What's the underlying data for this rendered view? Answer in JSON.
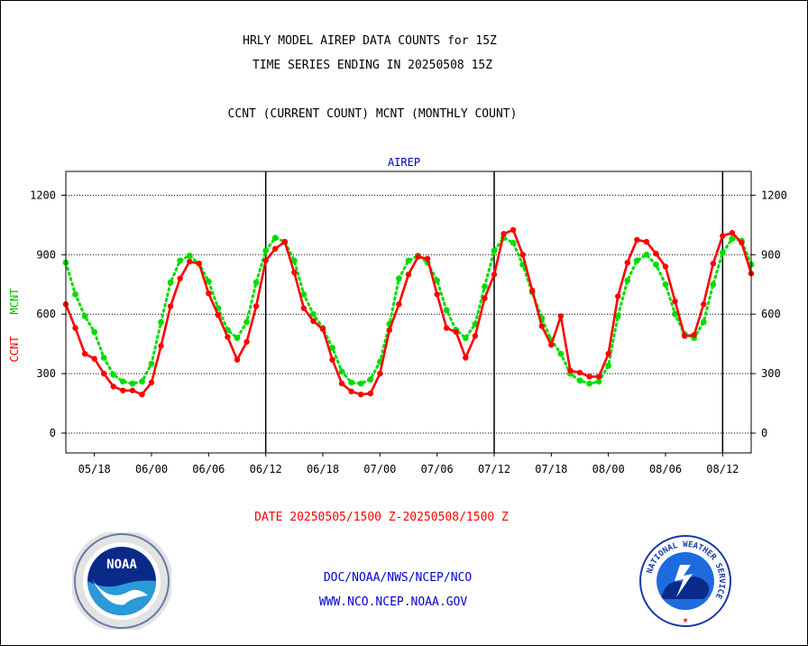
{
  "header": {
    "title_line1": "HRLY MODEL AIREP DATA COUNTS for 15Z",
    "title_line2": "TIME SERIES ENDING IN 20250508 15Z",
    "title_line3": "CCNT (CURRENT COUNT) MCNT (MONTHLY COUNT)"
  },
  "footer": {
    "date_range": "DATE 20250505/1500 Z-20250508/1500 Z",
    "org_line": "DOC/NOAA/NWS/NCEP/NCO",
    "url_line": "WWW.NCO.NCEP.NOAA.GOV"
  },
  "logos": {
    "noaa_text": "NOAA",
    "nws_text": "NATIONAL WEATHER SERVICE"
  },
  "colors": {
    "ccnt": "#ff0000",
    "mcnt": "#00dd00",
    "subtitle": "#0000cc",
    "grid": "#000000"
  },
  "chart_data": {
    "type": "line",
    "subtitle": "AIREP",
    "ylabel_ccnt": "CCNT",
    "ylabel_mcnt": "MCNT",
    "ylim": [
      -100,
      1320
    ],
    "y_ticks": [
      0,
      300,
      600,
      900,
      1200
    ],
    "x_range": [
      0,
      72
    ],
    "x_tick_labels": [
      {
        "hour": 3,
        "label": "05/18"
      },
      {
        "hour": 9,
        "label": "06/00"
      },
      {
        "hour": 15,
        "label": "06/06"
      },
      {
        "hour": 21,
        "label": "06/12"
      },
      {
        "hour": 27,
        "label": "06/18"
      },
      {
        "hour": 33,
        "label": "07/00"
      },
      {
        "hour": 39,
        "label": "07/06"
      },
      {
        "hour": 45,
        "label": "07/12"
      },
      {
        "hour": 51,
        "label": "07/18"
      },
      {
        "hour": 57,
        "label": "08/00"
      },
      {
        "hour": 63,
        "label": "08/06"
      },
      {
        "hour": 69,
        "label": "08/12"
      }
    ],
    "day_dividers": [
      21,
      45,
      69
    ],
    "grid": true,
    "series": [
      {
        "name": "CCNT",
        "color": "#ff0000",
        "values": [
          650,
          530,
          400,
          375,
          300,
          235,
          215,
          215,
          195,
          255,
          440,
          640,
          780,
          865,
          855,
          705,
          595,
          485,
          370,
          460,
          640,
          870,
          930,
          965,
          810,
          630,
          565,
          525,
          370,
          250,
          210,
          195,
          200,
          300,
          520,
          650,
          800,
          890,
          880,
          700,
          530,
          510,
          380,
          490,
          680,
          800,
          1005,
          1025,
          900,
          720,
          540,
          445,
          590,
          315,
          305,
          285,
          285,
          400,
          690,
          860,
          975,
          965,
          905,
          840,
          665,
          490,
          495,
          650,
          855,
          995,
          1010,
          960,
          805
        ]
      },
      {
        "name": "MCNT",
        "color": "#00dd00",
        "values": [
          860,
          700,
          590,
          510,
          380,
          295,
          260,
          250,
          260,
          350,
          560,
          760,
          870,
          895,
          855,
          765,
          630,
          520,
          480,
          560,
          760,
          920,
          985,
          965,
          870,
          700,
          600,
          530,
          430,
          310,
          255,
          250,
          270,
          360,
          550,
          780,
          870,
          895,
          860,
          770,
          620,
          520,
          480,
          550,
          740,
          920,
          985,
          960,
          850,
          710,
          580,
          470,
          400,
          300,
          265,
          250,
          260,
          340,
          590,
          770,
          870,
          900,
          850,
          750,
          600,
          500,
          480,
          560,
          750,
          910,
          980,
          970,
          850
        ]
      }
    ]
  }
}
